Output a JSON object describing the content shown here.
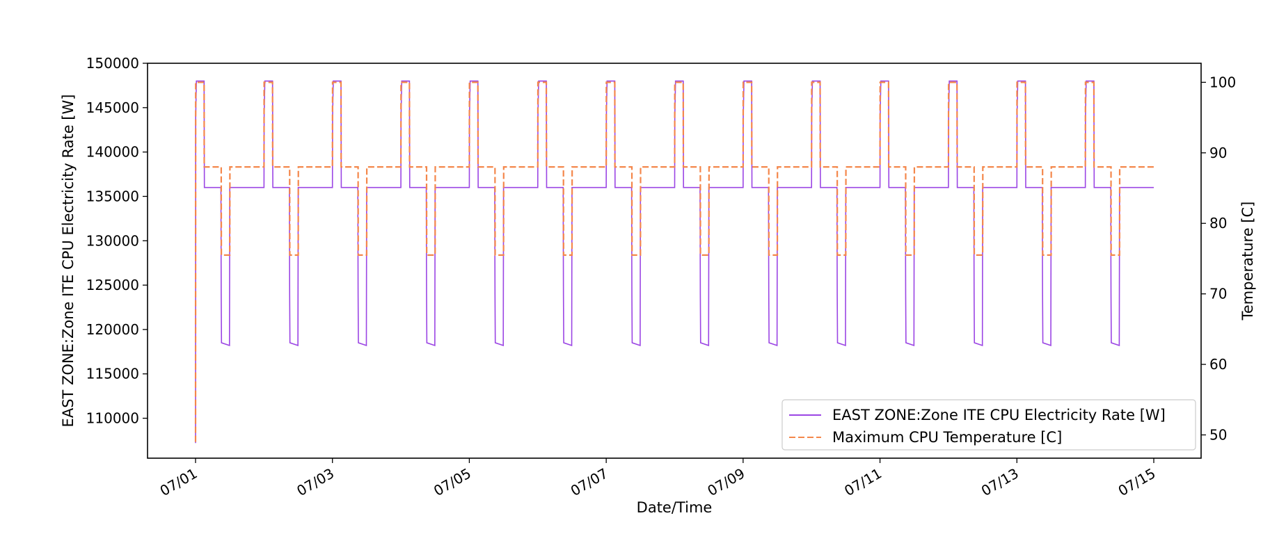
{
  "chart_data": {
    "type": "line",
    "xlabel": "Date/Time",
    "ylabel_left": "EAST ZONE:Zone ITE CPU Electricity Rate [W]",
    "ylabel_right": "Temperature [C]",
    "x_range": [
      "2023-07-01T00:00",
      "2023-07-15T00:00"
    ],
    "x_ticks": [
      "07/01",
      "07/03",
      "07/05",
      "07/07",
      "07/09",
      "07/11",
      "07/13",
      "07/15"
    ],
    "y_left_range": [
      105500,
      150000
    ],
    "y_left_ticks": [
      110000,
      115000,
      120000,
      125000,
      130000,
      135000,
      140000,
      145000,
      150000
    ],
    "y_right_range": [
      46.7,
      102.7
    ],
    "y_right_ticks": [
      50,
      60,
      70,
      80,
      90,
      100
    ],
    "grid": false,
    "legend_position": "lower-right",
    "colors": {
      "cpu_power": "#9b45e4",
      "max_temp": "#f4874b"
    },
    "series": [
      {
        "name": "EAST ZONE:Zone ITE CPU Electricity Rate [W]",
        "axis": "left",
        "style": "solid",
        "initial_point": {
          "x": "07/01 00:00",
          "y": 107200
        },
        "daily_profile": [
          {
            "hour": 0.0,
            "y": 136000
          },
          {
            "hour": 0.05,
            "y": 144000
          },
          {
            "hour": 0.3,
            "y": 148000
          },
          {
            "hour": 3.0,
            "y": 148000
          },
          {
            "hour": 3.1,
            "y": 136000
          },
          {
            "hour": 8.9,
            "y": 136000
          },
          {
            "hour": 9.0,
            "y": 124000
          },
          {
            "hour": 9.1,
            "y": 118500
          },
          {
            "hour": 11.9,
            "y": 118200
          },
          {
            "hour": 12.0,
            "y": 136000
          },
          {
            "hour": 24.0,
            "y": 136000
          }
        ],
        "days": [
          "07/01",
          "07/02",
          "07/03",
          "07/04",
          "07/05",
          "07/06",
          "07/07",
          "07/08",
          "07/09",
          "07/10",
          "07/11",
          "07/12",
          "07/13",
          "07/14"
        ]
      },
      {
        "name": "Maximum CPU Temperature [C]",
        "axis": "right",
        "style": "dashed",
        "initial_point": {
          "x": "07/01 00:00",
          "y": 49.0
        },
        "daily_profile": [
          {
            "hour": 0.0,
            "y": 88
          },
          {
            "hour": 0.05,
            "y": 100
          },
          {
            "hour": 3.0,
            "y": 100
          },
          {
            "hour": 3.05,
            "y": 88
          },
          {
            "hour": 9.0,
            "y": 88
          },
          {
            "hour": 9.05,
            "y": 75.5
          },
          {
            "hour": 12.0,
            "y": 75.5
          },
          {
            "hour": 12.05,
            "y": 88
          },
          {
            "hour": 24.0,
            "y": 88
          }
        ],
        "days": [
          "07/01",
          "07/02",
          "07/03",
          "07/04",
          "07/05",
          "07/06",
          "07/07",
          "07/08",
          "07/09",
          "07/10",
          "07/11",
          "07/12",
          "07/13",
          "07/14"
        ]
      }
    ]
  }
}
